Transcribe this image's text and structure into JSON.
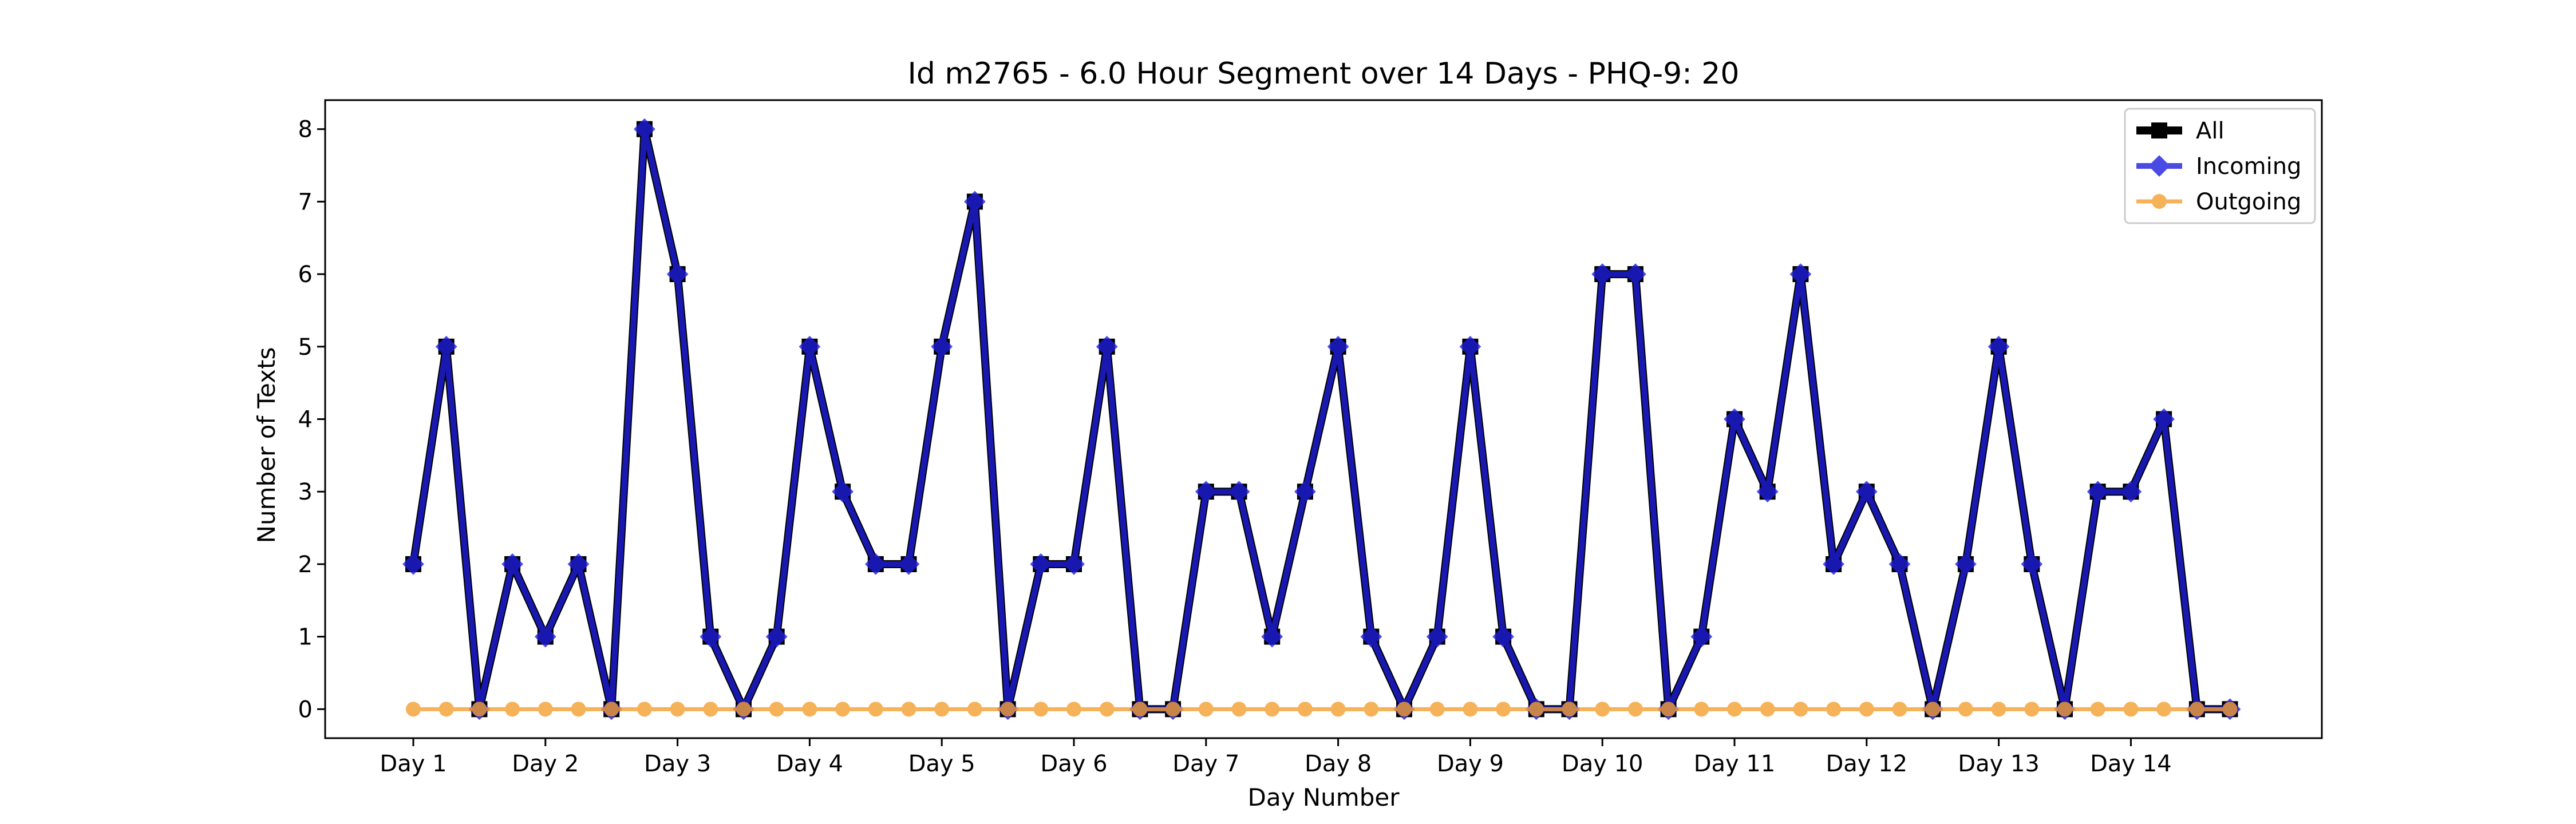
{
  "chart_data": {
    "type": "line",
    "title": "Id m2765 - 6.0 Hour Segment over 14 Days - PHQ-9: 20",
    "xlabel": "Day Number",
    "ylabel": "Number of Texts",
    "x_tick_labels": [
      "Day 1",
      "Day 2",
      "Day 3",
      "Day 4",
      "Day 5",
      "Day 6",
      "Day 7",
      "Day 8",
      "Day 9",
      "Day 10",
      "Day 11",
      "Day 12",
      "Day 13",
      "Day 14"
    ],
    "y_ticks": [
      0,
      1,
      2,
      3,
      4,
      5,
      6,
      7,
      8
    ],
    "ylim": [
      -0.4,
      8.4
    ],
    "points_per_day": 4,
    "grid": false,
    "legend_position": "top-right",
    "series": [
      {
        "name": "All",
        "color": "#000000",
        "marker": "square",
        "values": [
          2,
          5,
          0,
          2,
          1,
          2,
          0,
          8,
          6,
          1,
          0,
          1,
          5,
          3,
          2,
          2,
          5,
          7,
          0,
          2,
          2,
          5,
          0,
          0,
          3,
          3,
          1,
          3,
          5,
          1,
          0,
          1,
          5,
          1,
          0,
          0,
          6,
          6,
          0,
          1,
          4,
          3,
          6,
          2,
          3,
          2,
          0,
          2,
          5,
          2,
          0,
          3,
          3,
          4,
          0,
          0
        ]
      },
      {
        "name": "Incoming",
        "color": "#1f1fdd",
        "marker": "diamond",
        "values": [
          2,
          5,
          0,
          2,
          1,
          2,
          0,
          8,
          6,
          1,
          0,
          1,
          5,
          3,
          2,
          2,
          5,
          7,
          0,
          2,
          2,
          5,
          0,
          0,
          3,
          3,
          1,
          3,
          5,
          1,
          0,
          1,
          5,
          1,
          0,
          0,
          6,
          6,
          0,
          1,
          4,
          3,
          6,
          2,
          3,
          2,
          0,
          2,
          5,
          2,
          0,
          3,
          3,
          4,
          0,
          0
        ]
      },
      {
        "name": "Outgoing",
        "color": "#f5a030",
        "marker": "circle",
        "values": [
          0,
          0,
          0,
          0,
          0,
          0,
          0,
          0,
          0,
          0,
          0,
          0,
          0,
          0,
          0,
          0,
          0,
          0,
          0,
          0,
          0,
          0,
          0,
          0,
          0,
          0,
          0,
          0,
          0,
          0,
          0,
          0,
          0,
          0,
          0,
          0,
          0,
          0,
          0,
          0,
          0,
          0,
          0,
          0,
          0,
          0,
          0,
          0,
          0,
          0,
          0,
          0,
          0,
          0,
          0,
          0
        ]
      }
    ]
  }
}
